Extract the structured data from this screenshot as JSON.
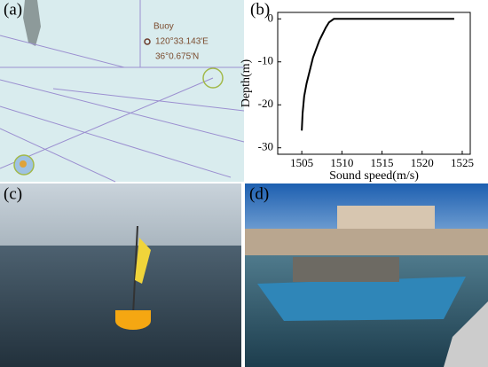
{
  "panels": [
    "(a)",
    "(b)",
    "(c)",
    "(d)"
  ],
  "map": {
    "label": "Buoy",
    "longitude": "120°33.143'E",
    "latitude": "36°0.675'N"
  },
  "chart_data": {
    "type": "line",
    "xlabel": "Sound speed(m/s)",
    "ylabel": "Depth(m)",
    "x": [
      1505,
      1505.1,
      1505.3,
      1505.6,
      1506,
      1506.4,
      1506.8,
      1507.2,
      1507.6,
      1508,
      1508.4,
      1509,
      1524
    ],
    "values": [
      -26,
      -22,
      -18,
      -15,
      -12,
      -9,
      -7,
      -5,
      -3.5,
      -2,
      -0.8,
      0,
      0
    ],
    "color": "#000000",
    "xlim": [
      1502,
      1526
    ],
    "xticks": [
      1505,
      1510,
      1515,
      1520,
      1525
    ],
    "ylim": [
      -31.5,
      1.5
    ],
    "yticks": [
      0,
      -10,
      -20,
      -30
    ]
  }
}
